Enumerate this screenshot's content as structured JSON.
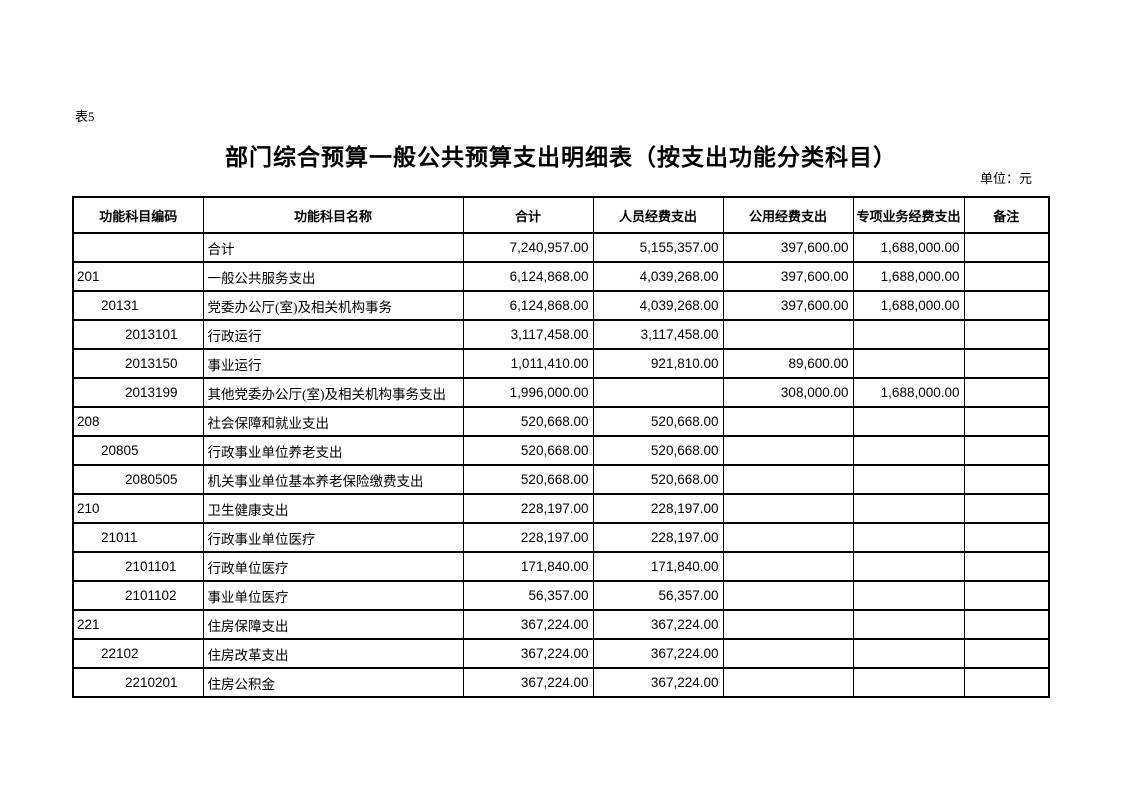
{
  "page": {
    "table_label": "表5",
    "title": "部门综合预算一般公共预算支出明细表（按支出功能分类科目）",
    "unit_note": "单位：元"
  },
  "colors": {
    "text": "#000000",
    "border": "#000000",
    "background": "#ffffff"
  },
  "table": {
    "columns": [
      {
        "key": "code",
        "label": "功能科目编码"
      },
      {
        "key": "name",
        "label": "功能科目名称"
      },
      {
        "key": "total",
        "label": "合计"
      },
      {
        "key": "personnel",
        "label": "人员经费支出"
      },
      {
        "key": "public",
        "label": "公用经费支出"
      },
      {
        "key": "special",
        "label": "专项业务经费支出"
      },
      {
        "key": "remark",
        "label": "备注"
      }
    ],
    "rows": [
      {
        "code": "",
        "level": 0,
        "name": "合计",
        "total": "7,240,957.00",
        "personnel": "5,155,357.00",
        "public": "397,600.00",
        "special": "1,688,000.00",
        "remark": ""
      },
      {
        "code": "201",
        "level": 1,
        "name": "一般公共服务支出",
        "total": "6,124,868.00",
        "personnel": "4,039,268.00",
        "public": "397,600.00",
        "special": "1,688,000.00",
        "remark": ""
      },
      {
        "code": "20131",
        "level": 2,
        "name": "党委办公厅(室)及相关机构事务",
        "total": "6,124,868.00",
        "personnel": "4,039,268.00",
        "public": "397,600.00",
        "special": "1,688,000.00",
        "remark": ""
      },
      {
        "code": "2013101",
        "level": 3,
        "name": "行政运行",
        "total": "3,117,458.00",
        "personnel": "3,117,458.00",
        "public": "",
        "special": "",
        "remark": ""
      },
      {
        "code": "2013150",
        "level": 3,
        "name": "事业运行",
        "total": "1,011,410.00",
        "personnel": "921,810.00",
        "public": "89,600.00",
        "special": "",
        "remark": ""
      },
      {
        "code": "2013199",
        "level": 3,
        "name": "其他党委办公厅(室)及相关机构事务支出",
        "total": "1,996,000.00",
        "personnel": "",
        "public": "308,000.00",
        "special": "1,688,000.00",
        "remark": ""
      },
      {
        "code": "208",
        "level": 1,
        "name": "社会保障和就业支出",
        "total": "520,668.00",
        "personnel": "520,668.00",
        "public": "",
        "special": "",
        "remark": ""
      },
      {
        "code": "20805",
        "level": 2,
        "name": "行政事业单位养老支出",
        "total": "520,668.00",
        "personnel": "520,668.00",
        "public": "",
        "special": "",
        "remark": ""
      },
      {
        "code": "2080505",
        "level": 3,
        "name": "机关事业单位基本养老保险缴费支出",
        "total": "520,668.00",
        "personnel": "520,668.00",
        "public": "",
        "special": "",
        "remark": ""
      },
      {
        "code": "210",
        "level": 1,
        "name": "卫生健康支出",
        "total": "228,197.00",
        "personnel": "228,197.00",
        "public": "",
        "special": "",
        "remark": ""
      },
      {
        "code": "21011",
        "level": 2,
        "name": "行政事业单位医疗",
        "total": "228,197.00",
        "personnel": "228,197.00",
        "public": "",
        "special": "",
        "remark": ""
      },
      {
        "code": "2101101",
        "level": 3,
        "name": "行政单位医疗",
        "total": "171,840.00",
        "personnel": "171,840.00",
        "public": "",
        "special": "",
        "remark": ""
      },
      {
        "code": "2101102",
        "level": 3,
        "name": "事业单位医疗",
        "total": "56,357.00",
        "personnel": "56,357.00",
        "public": "",
        "special": "",
        "remark": ""
      },
      {
        "code": "221",
        "level": 1,
        "name": "住房保障支出",
        "total": "367,224.00",
        "personnel": "367,224.00",
        "public": "",
        "special": "",
        "remark": ""
      },
      {
        "code": "22102",
        "level": 2,
        "name": "住房改革支出",
        "total": "367,224.00",
        "personnel": "367,224.00",
        "public": "",
        "special": "",
        "remark": ""
      },
      {
        "code": "2210201",
        "level": 3,
        "name": "住房公积金",
        "total": "367,224.00",
        "personnel": "367,224.00",
        "public": "",
        "special": "",
        "remark": ""
      }
    ]
  }
}
